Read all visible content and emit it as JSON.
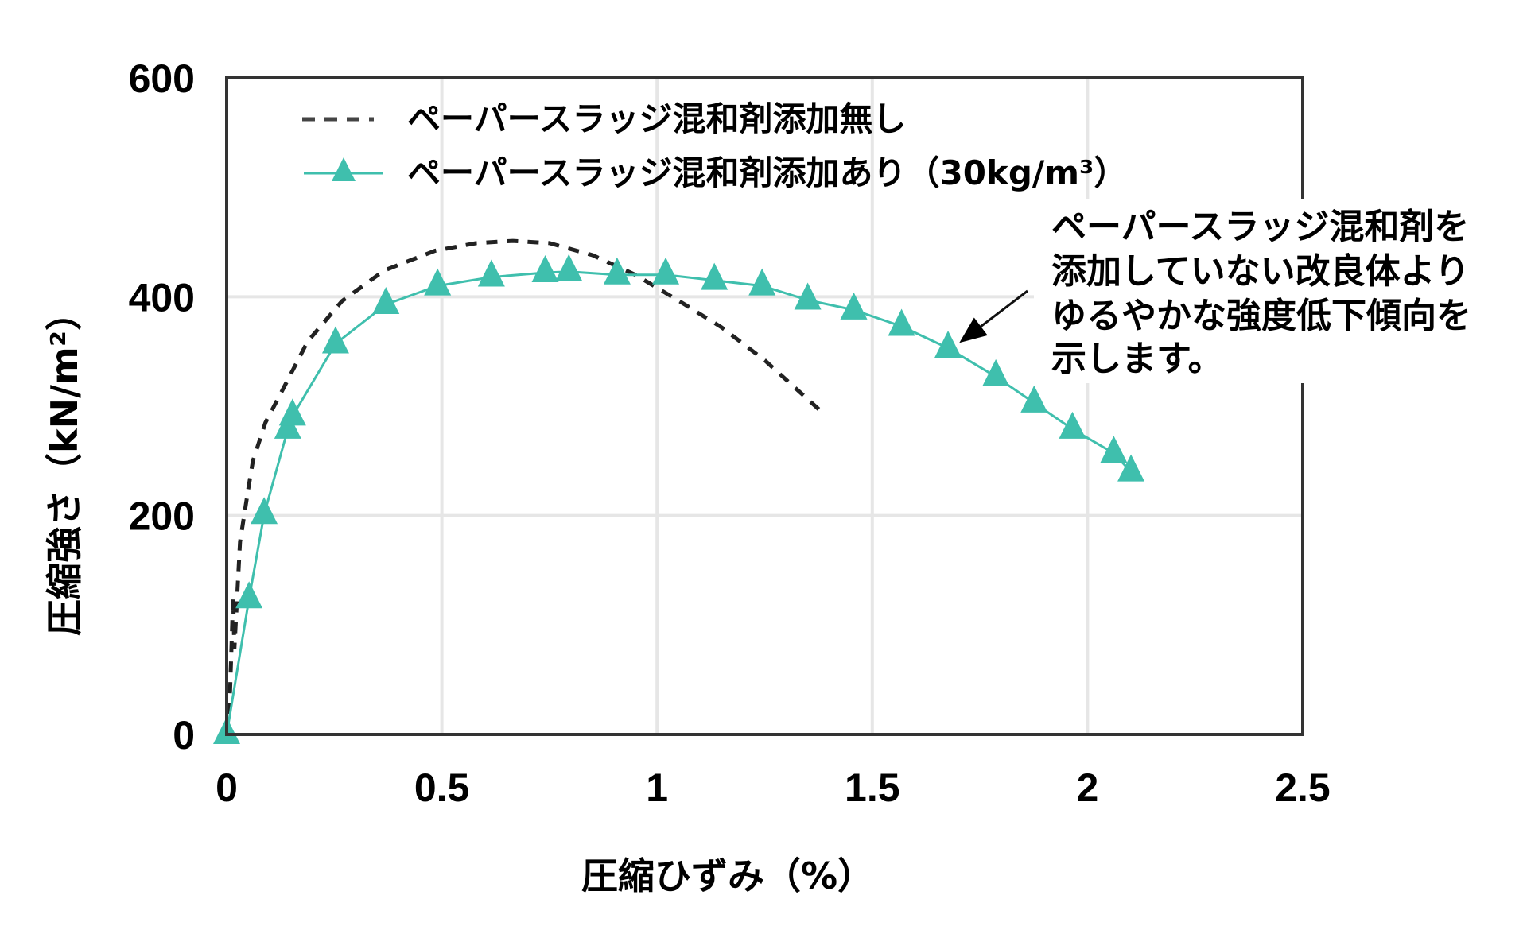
{
  "chart_data": {
    "type": "line",
    "title": "",
    "xlabel": "圧縮ひずみ（%）",
    "ylabel": "圧縮強さ（kN/m²）",
    "xlim": [
      0,
      2.5
    ],
    "ylim": [
      0,
      600
    ],
    "x_ticks": [
      0,
      0.5,
      1,
      1.5,
      2,
      2.5
    ],
    "x_tick_labels": [
      "0",
      "0.5",
      "1",
      "1.5",
      "2",
      "2.5"
    ],
    "y_ticks": [
      0,
      200,
      400,
      600
    ],
    "y_tick_labels": [
      "0",
      "200",
      "400",
      "600"
    ],
    "grid": true,
    "legend_position": "top-left",
    "series": [
      {
        "name": "ペーパースラッジ混和剤添加無し",
        "style": "dashed",
        "color": "#222222",
        "marker": "none",
        "x": [
          0,
          0.008,
          0.015,
          0.018,
          0.031,
          0.05,
          0.061,
          0.09,
          0.13,
          0.188,
          0.268,
          0.366,
          0.484,
          0.58,
          0.665,
          0.75,
          0.85,
          0.95,
          1.06,
          1.15,
          1.25,
          1.379
        ],
        "y": [
          0,
          40,
          126,
          78,
          176,
          224,
          250,
          285,
          315,
          359,
          396,
          424,
          442,
          449,
          451,
          449,
          438,
          420,
          394,
          372,
          342,
          296
        ]
      },
      {
        "name": "ペーパースラッジ混和剤添加あり（30kg/m³）",
        "style": "solid",
        "color": "#3fbfad",
        "marker": "triangle",
        "x": [
          0,
          0.052,
          0.087,
          0.142,
          0.153,
          0.253,
          0.37,
          0.49,
          0.615,
          0.74,
          0.795,
          0.907,
          1.02,
          1.133,
          1.244,
          1.35,
          1.457,
          1.568,
          1.676,
          1.787,
          1.876,
          1.965,
          2.061,
          2.101
        ],
        "y": [
          0,
          124,
          201,
          279,
          291,
          357,
          393,
          410,
          418,
          422,
          423,
          420,
          420,
          415,
          410,
          397,
          388,
          373,
          353,
          327,
          303,
          279,
          257,
          240
        ]
      }
    ],
    "annotation": {
      "lines": [
        "ペーパースラッジ混和剤を",
        "添加していない改良体より",
        "ゆるやかな強度低下傾向を",
        "示します。"
      ],
      "arrow_target": {
        "x": 1.68,
        "y": 355
      }
    }
  }
}
